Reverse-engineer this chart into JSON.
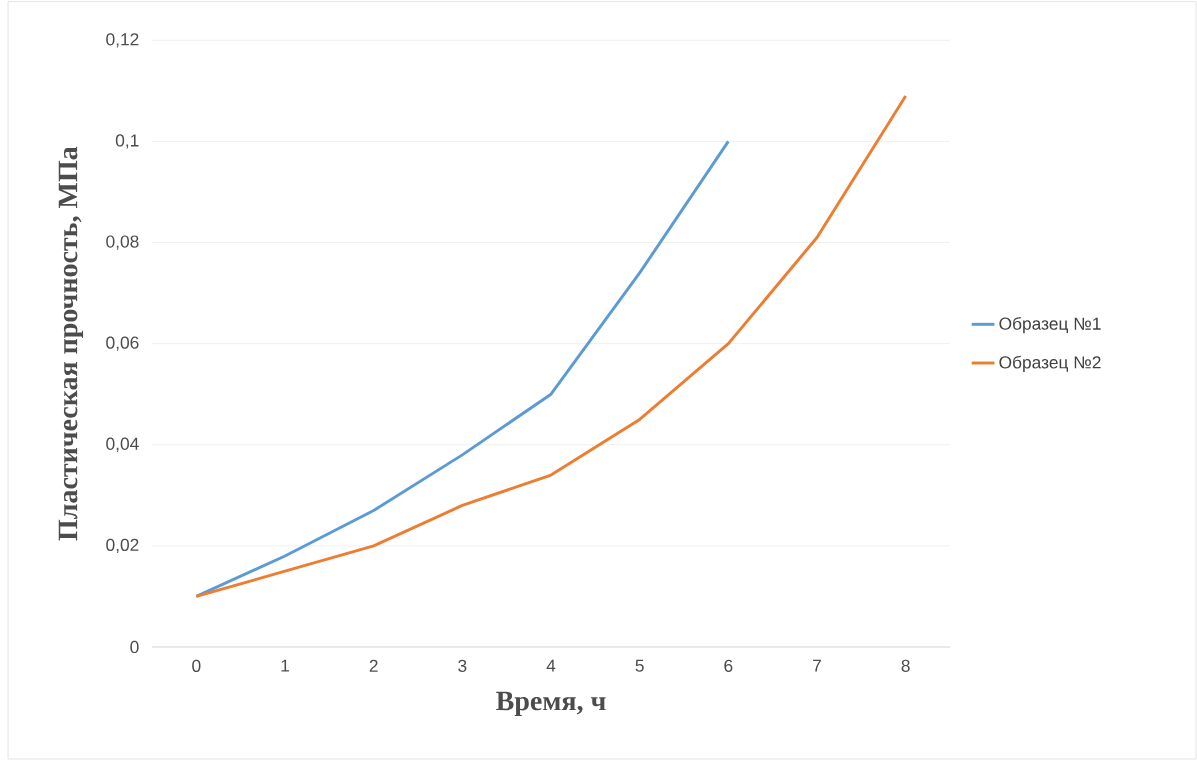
{
  "chart_data": {
    "type": "line",
    "xlabel": "Время, ч",
    "ylabel": "Пластическая прочность, МПа",
    "categories": [
      "0",
      "1",
      "2",
      "3",
      "4",
      "5",
      "6",
      "7",
      "8"
    ],
    "series": [
      {
        "name": "Образец №1",
        "color": "#5b9bd5",
        "values": [
          0.01,
          0.018,
          0.027,
          0.038,
          0.05,
          0.074,
          0.1,
          null,
          null
        ]
      },
      {
        "name": "Образец №2",
        "color": "#ed7d31",
        "values": [
          0.01,
          0.015,
          0.02,
          0.028,
          0.034,
          0.045,
          0.06,
          0.081,
          0.109
        ]
      }
    ],
    "ylim": [
      0,
      0.12
    ],
    "yticks": [
      0,
      {
        "value": 0.02,
        "label": "0,02"
      },
      {
        "value": 0.04,
        "label": "0,04"
      },
      {
        "value": 0.06,
        "label": "0,06"
      },
      {
        "value": 0.08,
        "label": "0,08"
      },
      {
        "value": 0.1,
        "label": "0,1"
      },
      {
        "value": 0.12,
        "label": "0,12"
      }
    ],
    "grid": "y",
    "legend": "right",
    "marker": "none",
    "line_style": "solid"
  }
}
